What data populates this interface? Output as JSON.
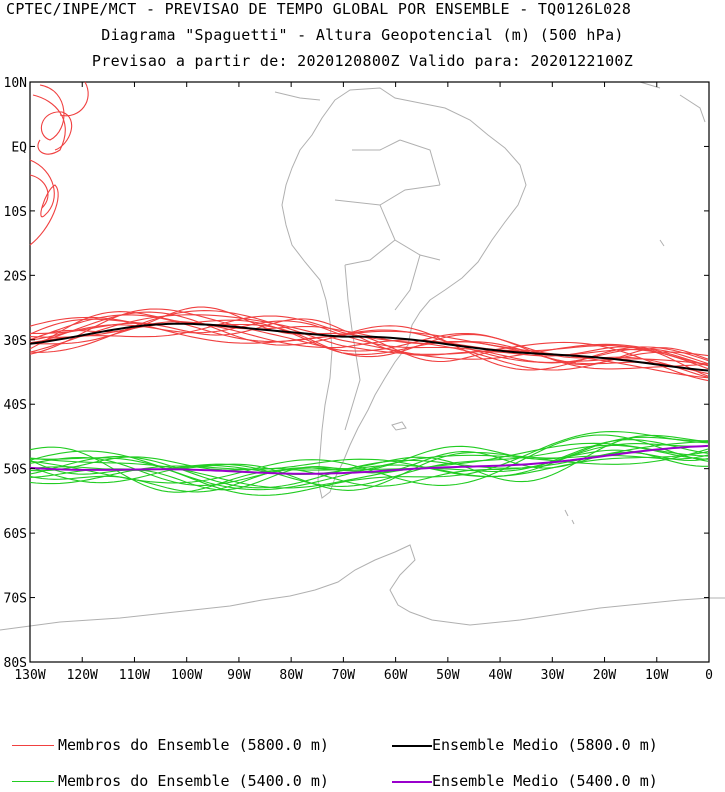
{
  "titles": {
    "line1": "CPTEC/INPE/MCT - PREVISAO DE TEMPO GLOBAL POR ENSEMBLE - TQ0126L028",
    "line2": "Diagrama \"Spaguetti\" - Altura Geopotencial (m) (500 hPa)",
    "line3": "Previsao a partir de: 2020120800Z  Valido para: 2020122100Z"
  },
  "map": {
    "lat_labels": [
      "10N",
      "EQ",
      "10S",
      "20S",
      "30S",
      "40S",
      "50S",
      "60S",
      "70S",
      "80S"
    ],
    "lon_labels": [
      "130W",
      "120W",
      "110W",
      "100W",
      "90W",
      "80W",
      "70W",
      "60W",
      "50W",
      "40W",
      "30W",
      "20W",
      "10W",
      "0"
    ],
    "colors": {
      "members_5800": "#f04040",
      "mean_5800": "#000000",
      "members_5400": "#22cc22",
      "mean_5400": "#9900cc",
      "coast": "#b0b0b0"
    }
  },
  "legend": {
    "members_5800": "Membros do Ensemble (5800.0 m)",
    "mean_5800": "Ensemble Medio (5800.0 m)",
    "members_5400": "Membros do Ensemble (5400.0 m)",
    "mean_5400": "Ensemble Medio (5400.0 m)"
  }
}
